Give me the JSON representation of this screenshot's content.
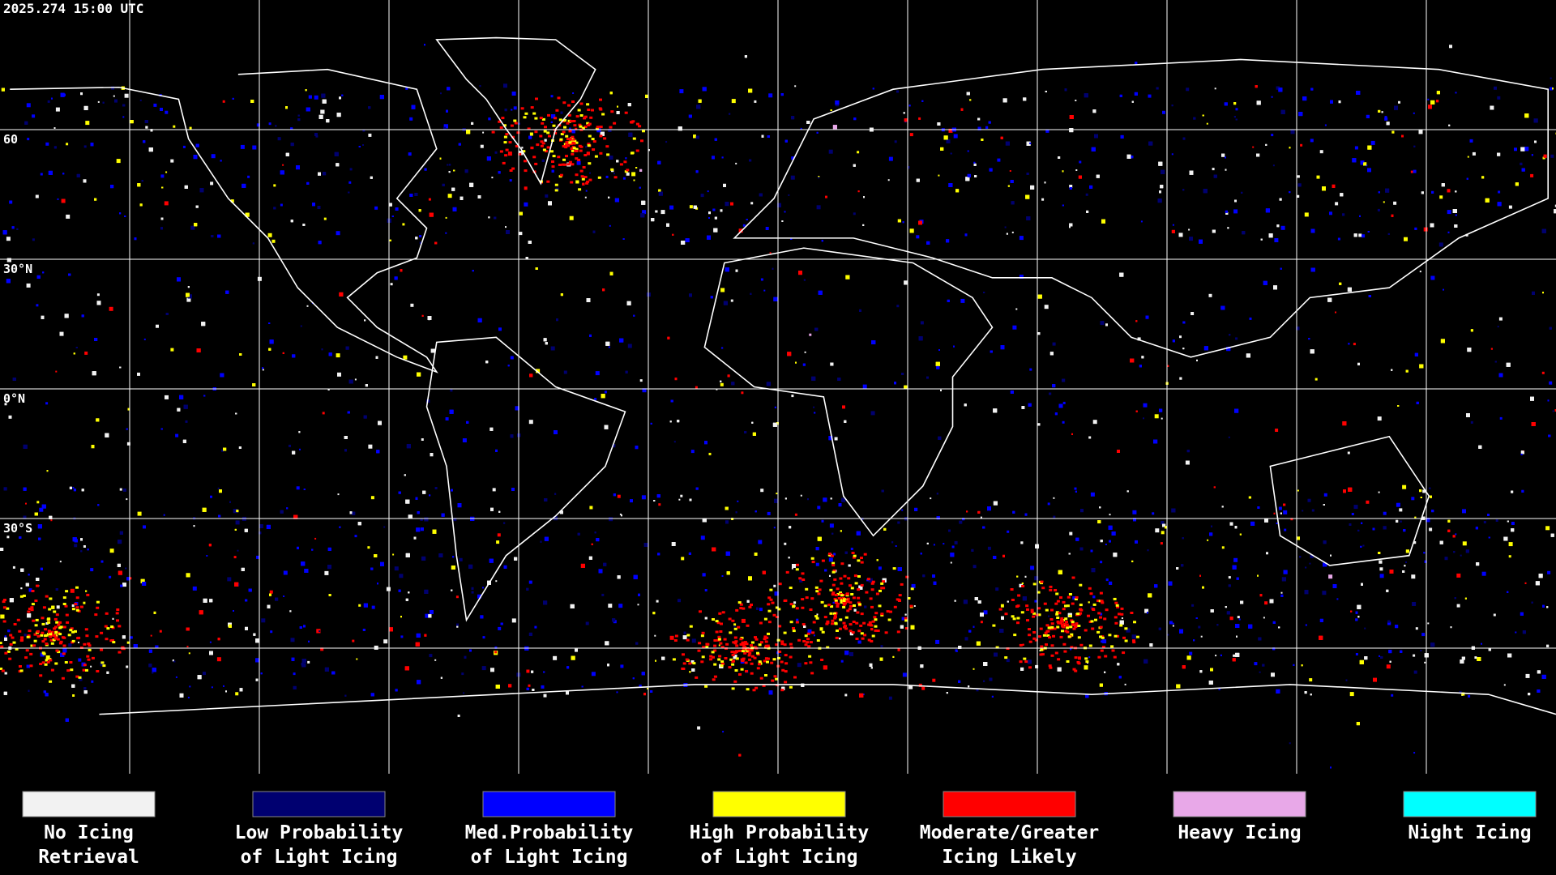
{
  "header": {
    "timestamp": "2025.274 15:00 UTC"
  },
  "latitude_labels": [
    "60",
    "30°N",
    "0°N",
    "30°S"
  ],
  "legend": [
    {
      "label": [
        "No Icing",
        "Retrieval"
      ],
      "color": "#f2f2f2"
    },
    {
      "label": [
        "Low Probability",
        "of Light Icing"
      ],
      "color": "#000070"
    },
    {
      "label": [
        "Med.Probability",
        "of Light Icing"
      ],
      "color": "#0000ff"
    },
    {
      "label": [
        "High Probability",
        "of Light Icing"
      ],
      "color": "#ffff00"
    },
    {
      "label": [
        "Moderate/Greater",
        "Icing Likely"
      ],
      "color": "#ff0000"
    },
    {
      "label": [
        "Heavy Icing"
      ],
      "color": "#e8a8e8"
    },
    {
      "label": [
        "Night Icing"
      ],
      "color": "#00ffff"
    }
  ]
}
